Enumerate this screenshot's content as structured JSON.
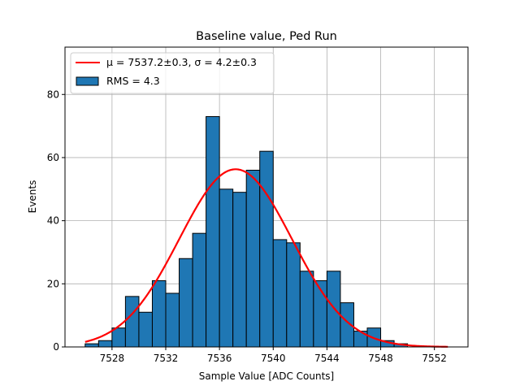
{
  "chart_data": {
    "type": "bar",
    "title": "Baseline value, Ped Run",
    "xlabel": "Sample Value [ADC Counts]",
    "ylabel": "Events",
    "xlim": [
      7524.5,
      7554.5
    ],
    "ylim": [
      0,
      95
    ],
    "grid": true,
    "legend_position": "top-left",
    "x_ticks": [
      7528,
      7532,
      7536,
      7540,
      7544,
      7548,
      7552
    ],
    "y_ticks": [
      0,
      20,
      40,
      60,
      80
    ],
    "bin_edges": [
      7526.0,
      7527.0,
      7528.0,
      7529.0,
      7530.0,
      7531.0,
      7532.0,
      7533.0,
      7534.0,
      7535.0,
      7536.0,
      7537.0,
      7538.0,
      7539.0,
      7540.0,
      7541.0,
      7542.0,
      7543.0,
      7544.0,
      7545.0,
      7546.0,
      7547.0,
      7548.0,
      7549.0,
      7550.0
    ],
    "counts": [
      1,
      2,
      6,
      16,
      11,
      21,
      17,
      28,
      36,
      73,
      50,
      49,
      56,
      62,
      34,
      33,
      24,
      21,
      24,
      14,
      5,
      6,
      2,
      1
    ],
    "series": [
      {
        "name": "histogram",
        "legend_label": "RMS = 4.3",
        "color": "#1f77b4",
        "edge_color": "#000000"
      },
      {
        "name": "gaussian_fit",
        "legend_label": "μ = 7537.2±0.3, σ = 4.2±0.3",
        "color": "#ff0000",
        "mu": 7537.2,
        "sigma": 4.2,
        "amplitude": 56.3,
        "x_range": [
          7526.0,
          7553.0
        ]
      }
    ]
  }
}
